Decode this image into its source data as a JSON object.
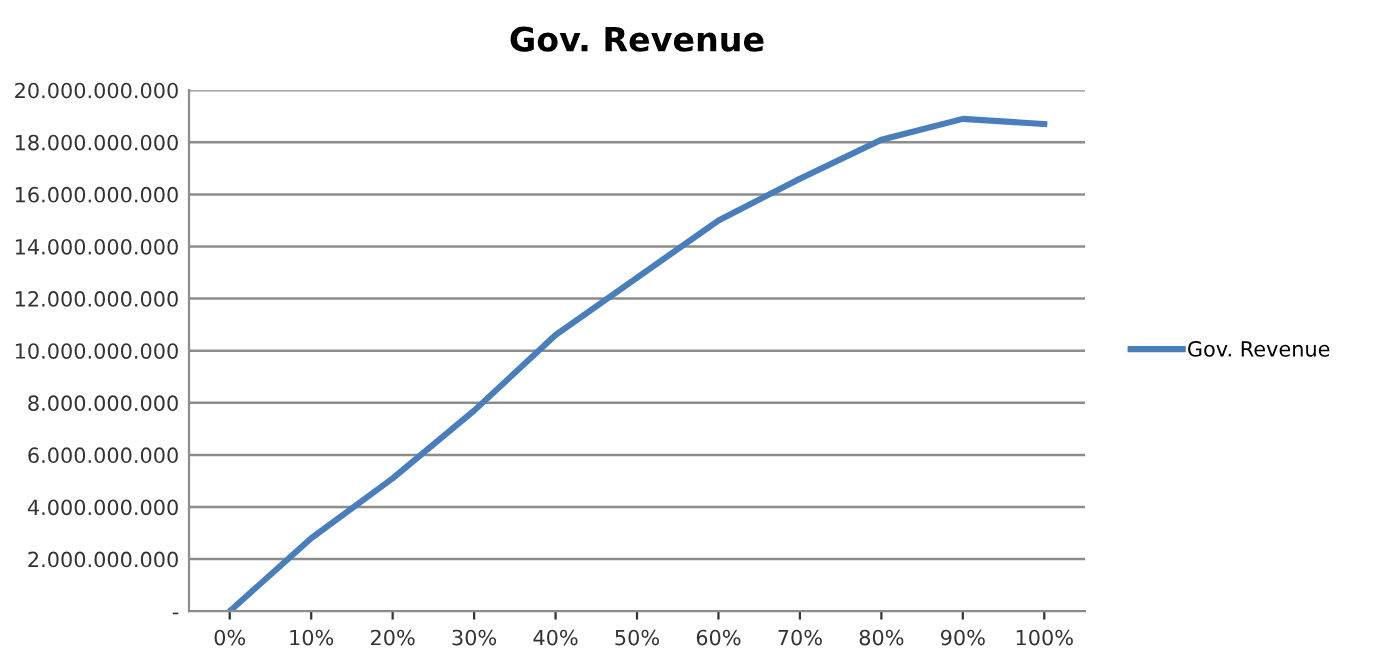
{
  "chart_data": {
    "type": "line",
    "title": "Gov. Revenue",
    "categories": [
      "0%",
      "10%",
      "20%",
      "30%",
      "40%",
      "50%",
      "60%",
      "70%",
      "80%",
      "90%",
      "100%"
    ],
    "series": [
      {
        "name": "Gov. Revenue",
        "color": "#4a7ebb",
        "values": [
          0,
          2800000000,
          5100000000,
          7700000000,
          10600000000,
          12800000000,
          15000000000,
          16600000000,
          18100000000,
          18900000000,
          18700000000
        ]
      }
    ],
    "ylim": [
      0,
      20000000000
    ],
    "yticks": [
      {
        "value": 0,
        "label": "-"
      },
      {
        "value": 2000000000,
        "label": "2.000.000.000"
      },
      {
        "value": 4000000000,
        "label": "4.000.000.000"
      },
      {
        "value": 6000000000,
        "label": "6.000.000.000"
      },
      {
        "value": 8000000000,
        "label": "8.000.000.000"
      },
      {
        "value": 10000000000,
        "label": "10.000.000.000"
      },
      {
        "value": 12000000000,
        "label": "12.000.000.000"
      },
      {
        "value": 14000000000,
        "label": "14.000.000.000"
      },
      {
        "value": 16000000000,
        "label": "16.000.000.000"
      },
      {
        "value": 18000000000,
        "label": "18.000.000.000"
      },
      {
        "value": 20000000000,
        "label": "20.000.000.000"
      }
    ],
    "grid": "y",
    "legend": "right",
    "marker": "none",
    "line_style": "solid"
  }
}
